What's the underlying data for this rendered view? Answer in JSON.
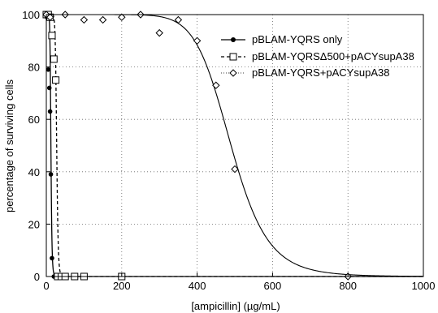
{
  "chart_data": {
    "type": "scatter",
    "xlabel": "[ampicillin] (µg/mL)",
    "ylabel": "percentage of surviving cells",
    "xlim": [
      0,
      1000
    ],
    "ylim": [
      0,
      100
    ],
    "x_ticks": [
      "0",
      "200",
      "400",
      "600",
      "800",
      "1000"
    ],
    "y_ticks": [
      "0",
      "20",
      "40",
      "60",
      "80",
      "100"
    ],
    "grid": true,
    "grid_style": "dotted",
    "legend_position": "right",
    "series": [
      {
        "name": "pBLAM-YQRS only",
        "marker": "filled-circle",
        "line": "solid",
        "x": [
          0,
          2,
          5,
          8,
          10,
          12,
          15,
          20
        ],
        "y": [
          100,
          99,
          79,
          72,
          63,
          39,
          7,
          0
        ]
      },
      {
        "name": "pBLAM-YQRSΔ500+pACYsupA38",
        "marker": "open-square",
        "line": "dashed",
        "x": [
          0,
          5,
          10,
          15,
          20,
          25,
          30,
          40,
          50,
          75,
          100,
          200
        ],
        "y": [
          100,
          100,
          99,
          92,
          83,
          75,
          0,
          0,
          0,
          0,
          0,
          0
        ]
      },
      {
        "name": "pBLAM-YQRS+pACYsupA38",
        "marker": "open-diamond",
        "line": "solid",
        "x": [
          0,
          10,
          50,
          100,
          150,
          200,
          250,
          300,
          350,
          400,
          450,
          500,
          800
        ],
        "y": [
          100,
          99,
          100,
          98,
          98,
          99,
          100,
          93,
          98,
          90,
          73,
          41,
          0
        ]
      }
    ]
  }
}
